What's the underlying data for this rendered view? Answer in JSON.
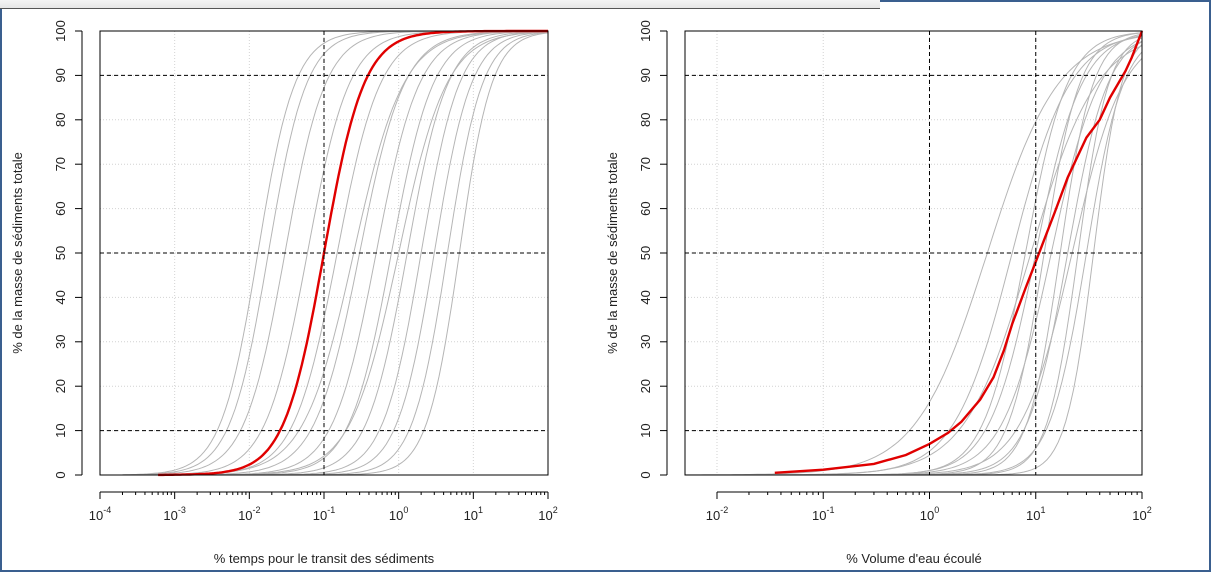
{
  "colors": {
    "frame": "#3a5f8f",
    "highlight": "#e00000",
    "background_curves": "#b5b5b5",
    "grid": "#d2d2d2",
    "reference_lines": "#000000"
  },
  "chart_data": [
    {
      "type": "line",
      "xscale": "log",
      "xlabel": "% temps pour le transit des sédiments",
      "ylabel": "% de la masse de sédiments totale",
      "xlim": [
        0.0001,
        100
      ],
      "ylim": [
        0,
        100
      ],
      "x_ticks": [
        0.0001,
        0.001,
        0.01,
        0.1,
        1,
        10,
        100
      ],
      "x_tick_labels": [
        {
          "base": "10",
          "exp": "-4"
        },
        {
          "base": "10",
          "exp": "-3"
        },
        {
          "base": "10",
          "exp": "-2"
        },
        {
          "base": "10",
          "exp": "-1"
        },
        {
          "base": "10",
          "exp": "0"
        },
        {
          "base": "10",
          "exp": "1"
        },
        {
          "base": "10",
          "exp": "2"
        }
      ],
      "y_ticks": [
        0,
        10,
        20,
        30,
        40,
        50,
        60,
        70,
        80,
        90,
        100
      ],
      "reference_hlines": [
        10,
        50,
        90
      ],
      "reference_vlines": [
        0.1
      ],
      "grid": true,
      "highlight": {
        "x_start": 0.0006,
        "midpoint": 0.1,
        "steepness": 1.62
      },
      "background": [
        {
          "x_start": 0.0002,
          "midpoint": 0.013,
          "steepness": 1.75
        },
        {
          "x_start": 0.0003,
          "midpoint": 0.018,
          "steepness": 1.7
        },
        {
          "x_start": 0.0004,
          "midpoint": 0.03,
          "steepness": 1.6
        },
        {
          "x_start": 0.0005,
          "midpoint": 0.06,
          "steepness": 1.55
        },
        {
          "x_start": 0.0006,
          "midpoint": 0.15,
          "steepness": 1.5
        },
        {
          "x_start": 0.0006,
          "midpoint": 0.3,
          "steepness": 1.45
        },
        {
          "x_start": 0.0006,
          "midpoint": 0.5,
          "steepness": 1.5
        },
        {
          "x_start": 0.0007,
          "midpoint": 0.8,
          "steepness": 1.55
        },
        {
          "x_start": 0.0007,
          "midpoint": 1.3,
          "steepness": 1.6
        },
        {
          "x_start": 0.0008,
          "midpoint": 2.0,
          "steepness": 1.7
        },
        {
          "x_start": 0.0008,
          "midpoint": 3.0,
          "steepness": 1.75
        },
        {
          "x_start": 0.0009,
          "midpoint": 4.5,
          "steepness": 1.85
        },
        {
          "x_start": 0.001,
          "midpoint": 6.5,
          "steepness": 2.0
        },
        {
          "x_start": 0.001,
          "midpoint": 0.25,
          "steepness": 1.3
        },
        {
          "x_start": 0.001,
          "midpoint": 1.0,
          "steepness": 1.35
        }
      ]
    },
    {
      "type": "line",
      "xscale": "log",
      "xlabel": "% Volume d'eau écoulé",
      "ylabel": "% de la masse de sédiments totale",
      "xlim": [
        0.005,
        100
      ],
      "ylim": [
        0,
        100
      ],
      "x_ticks": [
        0.01,
        0.1,
        1,
        10,
        100
      ],
      "x_tick_labels": [
        {
          "base": "10",
          "exp": "-2"
        },
        {
          "base": "10",
          "exp": "-1"
        },
        {
          "base": "10",
          "exp": "0"
        },
        {
          "base": "10",
          "exp": "1"
        },
        {
          "base": "10",
          "exp": "2"
        }
      ],
      "y_ticks": [
        0,
        10,
        20,
        30,
        40,
        50,
        60,
        70,
        80,
        90,
        100
      ],
      "reference_hlines": [
        10,
        50,
        90
      ],
      "reference_vlines": [
        1,
        10
      ],
      "grid": true,
      "highlight": {
        "x": [
          0.035,
          0.1,
          0.3,
          0.6,
          1.0,
          1.5,
          2.0,
          3.0,
          4.0,
          5.0,
          6.0,
          8.0,
          10.0,
          12.0,
          15.0,
          20.0,
          30.0,
          40.0,
          50.0,
          70.0,
          80.0,
          100.0
        ],
        "y": [
          0.5,
          1.2,
          2.5,
          4.5,
          7.0,
          9.5,
          12.0,
          17.0,
          22.0,
          28.0,
          34.0,
          42.0,
          48.0,
          53.0,
          59.0,
          67.0,
          76.0,
          80.0,
          85.0,
          91.0,
          94.0,
          100.0
        ]
      },
      "background": [
        {
          "x_start": 0.005,
          "midpoint": 3.5,
          "steepness": 1.3
        },
        {
          "x_start": 0.005,
          "midpoint": 6.0,
          "steepness": 1.6
        },
        {
          "x_start": 0.005,
          "midpoint": 8.0,
          "steepness": 2.2
        },
        {
          "x_start": 0.005,
          "midpoint": 10.0,
          "steepness": 2.0
        },
        {
          "x_start": 0.005,
          "midpoint": 12.0,
          "steepness": 2.6
        },
        {
          "x_start": 0.005,
          "midpoint": 14.0,
          "steepness": 1.9
        },
        {
          "x_start": 0.005,
          "midpoint": 17.0,
          "steepness": 2.8
        },
        {
          "x_start": 0.005,
          "midpoint": 20.0,
          "steepness": 2.3
        },
        {
          "x_start": 0.005,
          "midpoint": 25.0,
          "steepness": 3.0
        },
        {
          "x_start": 0.005,
          "midpoint": 30.0,
          "steepness": 2.5
        },
        {
          "x_start": 0.005,
          "midpoint": 35.0,
          "steepness": 3.3
        },
        {
          "x_start": 0.005,
          "midpoint": 9.0,
          "steepness": 1.4
        },
        {
          "x_start": 0.005,
          "midpoint": 22.0,
          "steepness": 1.8
        }
      ]
    }
  ]
}
